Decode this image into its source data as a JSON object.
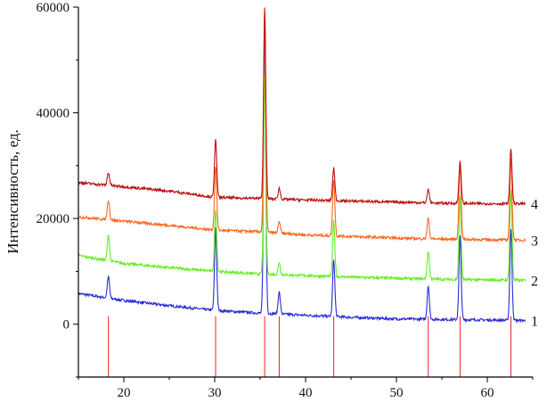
{
  "chart_data": {
    "type": "line",
    "ylabel": "Интенсивность, ед.",
    "xlabel": "",
    "xlim": [
      15,
      65
    ],
    "ylim": [
      -10000,
      60000
    ],
    "x_ticks": [
      20,
      30,
      40,
      50,
      60
    ],
    "y_ticks": [
      0,
      20000,
      40000,
      60000
    ],
    "reference_lines": {
      "color": "#ee2222",
      "x": [
        18.3,
        30.1,
        35.5,
        37.1,
        43.1,
        53.5,
        57.0,
        62.6
      ]
    },
    "series": [
      {
        "name": "1",
        "color": "#2b2bd6",
        "baseline": [
          [
            15,
            5800
          ],
          [
            20,
            4500
          ],
          [
            25,
            3500
          ],
          [
            30,
            2600
          ],
          [
            35,
            2100
          ],
          [
            40,
            1700
          ],
          [
            45,
            1300
          ],
          [
            50,
            1000
          ],
          [
            55,
            900
          ],
          [
            60,
            800
          ],
          [
            64,
            700
          ]
        ],
        "peaks": [
          [
            18.3,
            9000
          ],
          [
            30.1,
            18200
          ],
          [
            35.5,
            58000
          ],
          [
            37.1,
            6100
          ],
          [
            43.1,
            12300
          ],
          [
            53.5,
            7300
          ],
          [
            57.0,
            16600
          ],
          [
            62.6,
            18000
          ]
        ]
      },
      {
        "name": "2",
        "color": "#66ee22",
        "baseline": [
          [
            15,
            13000
          ],
          [
            20,
            11500
          ],
          [
            25,
            10700
          ],
          [
            30,
            10000
          ],
          [
            35,
            9500
          ],
          [
            40,
            9200
          ],
          [
            45,
            8900
          ],
          [
            50,
            8700
          ],
          [
            55,
            8500
          ],
          [
            60,
            8400
          ],
          [
            64,
            8300
          ]
        ],
        "peaks": [
          [
            18.3,
            16800
          ],
          [
            30.1,
            21500
          ],
          [
            35.5,
            47000
          ],
          [
            37.1,
            11700
          ],
          [
            43.1,
            19500
          ],
          [
            53.5,
            13800
          ],
          [
            57.0,
            24000
          ],
          [
            62.6,
            25500
          ]
        ]
      },
      {
        "name": "3",
        "color": "#ff6620",
        "baseline": [
          [
            15,
            20300
          ],
          [
            20,
            19500
          ],
          [
            25,
            18700
          ],
          [
            30,
            17800
          ],
          [
            35,
            17500
          ],
          [
            40,
            16900
          ],
          [
            45,
            16600
          ],
          [
            50,
            16300
          ],
          [
            55,
            16100
          ],
          [
            60,
            16000
          ],
          [
            64,
            15900
          ]
        ],
        "peaks": [
          [
            18.3,
            23500
          ],
          [
            30.1,
            30000
          ],
          [
            35.5,
            59000
          ],
          [
            37.1,
            19300
          ],
          [
            43.1,
            27500
          ],
          [
            53.5,
            20000
          ],
          [
            57.0,
            30500
          ],
          [
            62.6,
            31500
          ]
        ]
      },
      {
        "name": "4",
        "color": "#bb1111",
        "baseline": [
          [
            15,
            26800
          ],
          [
            20,
            26000
          ],
          [
            25,
            25200
          ],
          [
            30,
            24000
          ],
          [
            35,
            23800
          ],
          [
            40,
            23500
          ],
          [
            45,
            23300
          ],
          [
            50,
            23100
          ],
          [
            55,
            22900
          ],
          [
            60,
            22800
          ],
          [
            64,
            22800
          ]
        ],
        "peaks": [
          [
            18.3,
            28700
          ],
          [
            30.1,
            35200
          ],
          [
            35.5,
            60000
          ],
          [
            37.1,
            25700
          ],
          [
            43.1,
            29600
          ],
          [
            53.5,
            25500
          ],
          [
            57.0,
            31000
          ],
          [
            62.6,
            33200
          ]
        ]
      }
    ]
  }
}
